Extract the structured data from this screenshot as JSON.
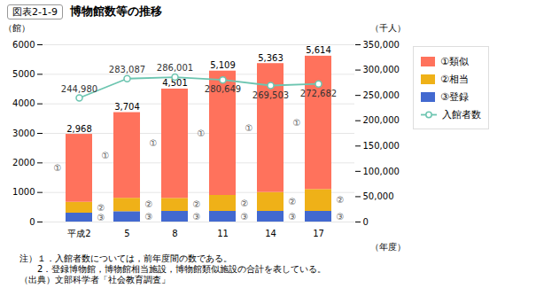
{
  "chart_data": {
    "type": "bar",
    "stacked": true,
    "title": "博物館数等の推移",
    "subtitle": "図表2-1-9",
    "xlabel": "（年度）",
    "ylabel": "（館）",
    "y2label": "（千人）",
    "categories": [
      "平成2",
      "5",
      "8",
      "11",
      "14",
      "17"
    ],
    "series": [
      {
        "name": "③登録",
        "type": "bar",
        "annotation": "③",
        "values": [
          300,
          350,
          360,
          360,
          360,
          360
        ]
      },
      {
        "name": "②相当",
        "type": "bar",
        "annotation": "②",
        "values": [
          368,
          454,
          440,
          540,
          640,
          740
        ]
      },
      {
        "name": "①類似",
        "type": "bar",
        "annotation": "①",
        "values": [
          2300,
          2900,
          3701,
          4209,
          4363,
          4514
        ]
      },
      {
        "name": "入館者数",
        "type": "line",
        "axis": "y2",
        "marker": "circle",
        "data_labels": true,
        "values": [
          244980,
          283087,
          286001,
          280649,
          269503,
          272682
        ],
        "value_labels": [
          "244,980",
          "283,087",
          "286,001",
          "280,649",
          "269,503",
          "272,682"
        ]
      }
    ],
    "totals": [
      2968,
      3704,
      4501,
      5109,
      5363,
      5614
    ],
    "total_labels": [
      "2,968",
      "3,704",
      "4,501",
      "5,109",
      "5,363",
      "5,614"
    ],
    "ylim": [
      0,
      6000
    ],
    "yticks": [
      0,
      1000,
      2000,
      3000,
      4000,
      5000,
      6000
    ],
    "y2lim": [
      0,
      350000
    ],
    "y2ticks": [
      0,
      {
        "value": 50000,
        "label": "50,000"
      },
      {
        "value": 100000,
        "label": "100,000"
      },
      {
        "value": 150000,
        "label": "150,000"
      },
      {
        "value": 200000,
        "label": "200,000"
      },
      {
        "value": 250000,
        "label": "250,000"
      },
      {
        "value": 300000,
        "label": "300,000"
      },
      {
        "value": 350000,
        "label": "350,000"
      }
    ],
    "grid": true,
    "legend": "right",
    "notes": [
      "注）１．入館者数については，前年度間の数である。",
      "　　2．登録博物館，博物館相当施設，博物館類似施設の合計を表している。",
      "（出典）文部科学者「社会教育調査」"
    ]
  }
}
